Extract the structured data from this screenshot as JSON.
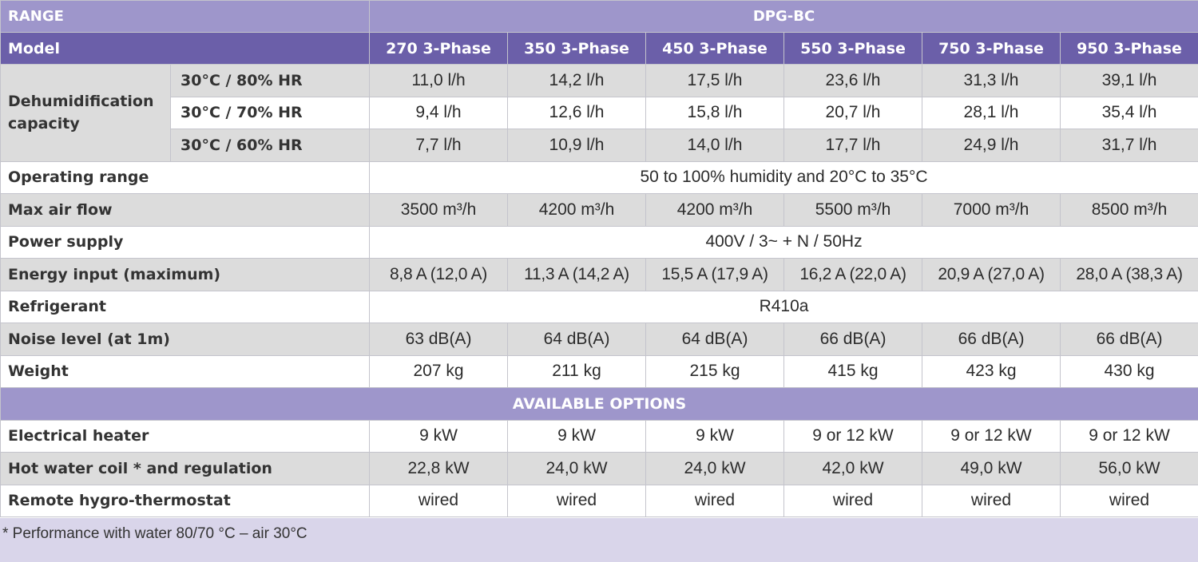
{
  "header": {
    "range_label": "RANGE",
    "range_value": "DPG-BC",
    "model_label": "Model",
    "models": [
      "270 3-Phase",
      "350 3-Phase",
      "450 3-Phase",
      "550 3-Phase",
      "750 3-Phase",
      "950 3-Phase"
    ]
  },
  "dehumidification": {
    "label": "Dehumidification capacity",
    "rows": [
      {
        "condition": "30°C / 80% HR",
        "values": [
          "11,0 l/h",
          "14,2 l/h",
          "17,5 l/h",
          "23,6 l/h",
          "31,3 l/h",
          "39,1 l/h"
        ]
      },
      {
        "condition": "30°C / 70% HR",
        "values": [
          "9,4 l/h",
          "12,6 l/h",
          "15,8 l/h",
          "20,7 l/h",
          "28,1 l/h",
          "35,4 l/h"
        ]
      },
      {
        "condition": "30°C / 60% HR",
        "values": [
          "7,7 l/h",
          "10,9 l/h",
          "14,0 l/h",
          "17,7 l/h",
          "24,9 l/h",
          "31,7 l/h"
        ]
      }
    ]
  },
  "specs": {
    "operating_range": {
      "label": "Operating range",
      "value": "50 to 100% humidity and 20°C to 35°C"
    },
    "max_air_flow": {
      "label": "Max air flow",
      "values": [
        "3500 m³/h",
        "4200 m³/h",
        "4200 m³/h",
        "5500 m³/h",
        "7000 m³/h",
        "8500 m³/h"
      ]
    },
    "power_supply": {
      "label": "Power supply",
      "value": "400V / 3~ + N / 50Hz"
    },
    "energy_input": {
      "label": "Energy input (maximum)",
      "values": [
        "8,8 A (12,0 A)",
        "11,3 A (14,2 A)",
        "15,5 A (17,9 A)",
        "16,2 A (22,0 A)",
        "20,9 A (27,0 A)",
        "28,0 A (38,3 A)"
      ]
    },
    "refrigerant": {
      "label": "Refrigerant",
      "value": "R410a"
    },
    "noise_level": {
      "label": "Noise level (at 1m)",
      "values": [
        "63 dB(A)",
        "64 dB(A)",
        "64 dB(A)",
        "66 dB(A)",
        "66 dB(A)",
        "66 dB(A)"
      ]
    },
    "weight": {
      "label": "Weight",
      "values": [
        "207 kg",
        "211 kg",
        "215 kg",
        "415 kg",
        "423 kg",
        "430 kg"
      ]
    }
  },
  "options": {
    "title": "AVAILABLE OPTIONS",
    "electrical_heater": {
      "label": "Electrical heater",
      "values": [
        "9 kW",
        "9 kW",
        "9 kW",
        "9 or 12 kW",
        "9 or 12 kW",
        "9 or 12 kW"
      ]
    },
    "hot_water_coil": {
      "label": "Hot water coil * and regulation",
      "values": [
        "22,8 kW",
        "24,0 kW",
        "24,0 kW",
        "42,0 kW",
        "49,0 kW",
        "56,0 kW"
      ]
    },
    "remote_hygro": {
      "label": "Remote hygro-thermostat",
      "values": [
        "wired",
        "wired",
        "wired",
        "wired",
        "wired",
        "wired"
      ]
    }
  },
  "footnote": "* Performance with water 80/70 °C – air 30°C"
}
